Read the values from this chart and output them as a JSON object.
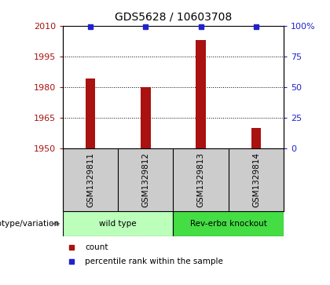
{
  "title": "GDS5628 / 10603708",
  "samples": [
    "GSM1329811",
    "GSM1329812",
    "GSM1329813",
    "GSM1329814"
  ],
  "counts": [
    1984,
    1980,
    2003,
    1960
  ],
  "percentile_ranks": [
    99,
    99,
    99,
    99
  ],
  "ylim_left": [
    1950,
    2010
  ],
  "ylim_right": [
    0,
    100
  ],
  "left_ticks": [
    1950,
    1965,
    1980,
    1995,
    2010
  ],
  "right_ticks": [
    0,
    25,
    50,
    75,
    100
  ],
  "right_tick_labels": [
    "0",
    "25",
    "50",
    "75",
    "100%"
  ],
  "bar_color": "#aa1111",
  "square_color": "#2222cc",
  "groups": [
    {
      "label": "wild type",
      "samples": [
        0,
        1
      ],
      "color": "#bbffbb"
    },
    {
      "label": "Rev-erbα knockout",
      "samples": [
        2,
        3
      ],
      "color": "#44dd44"
    }
  ],
  "genotype_label": "genotype/variation",
  "legend_count_label": "count",
  "legend_pct_label": "percentile rank within the sample",
  "background_color": "#ffffff",
  "plot_bg_color": "#ffffff",
  "grid_color": "#444444",
  "sample_bg_color": "#cccccc"
}
